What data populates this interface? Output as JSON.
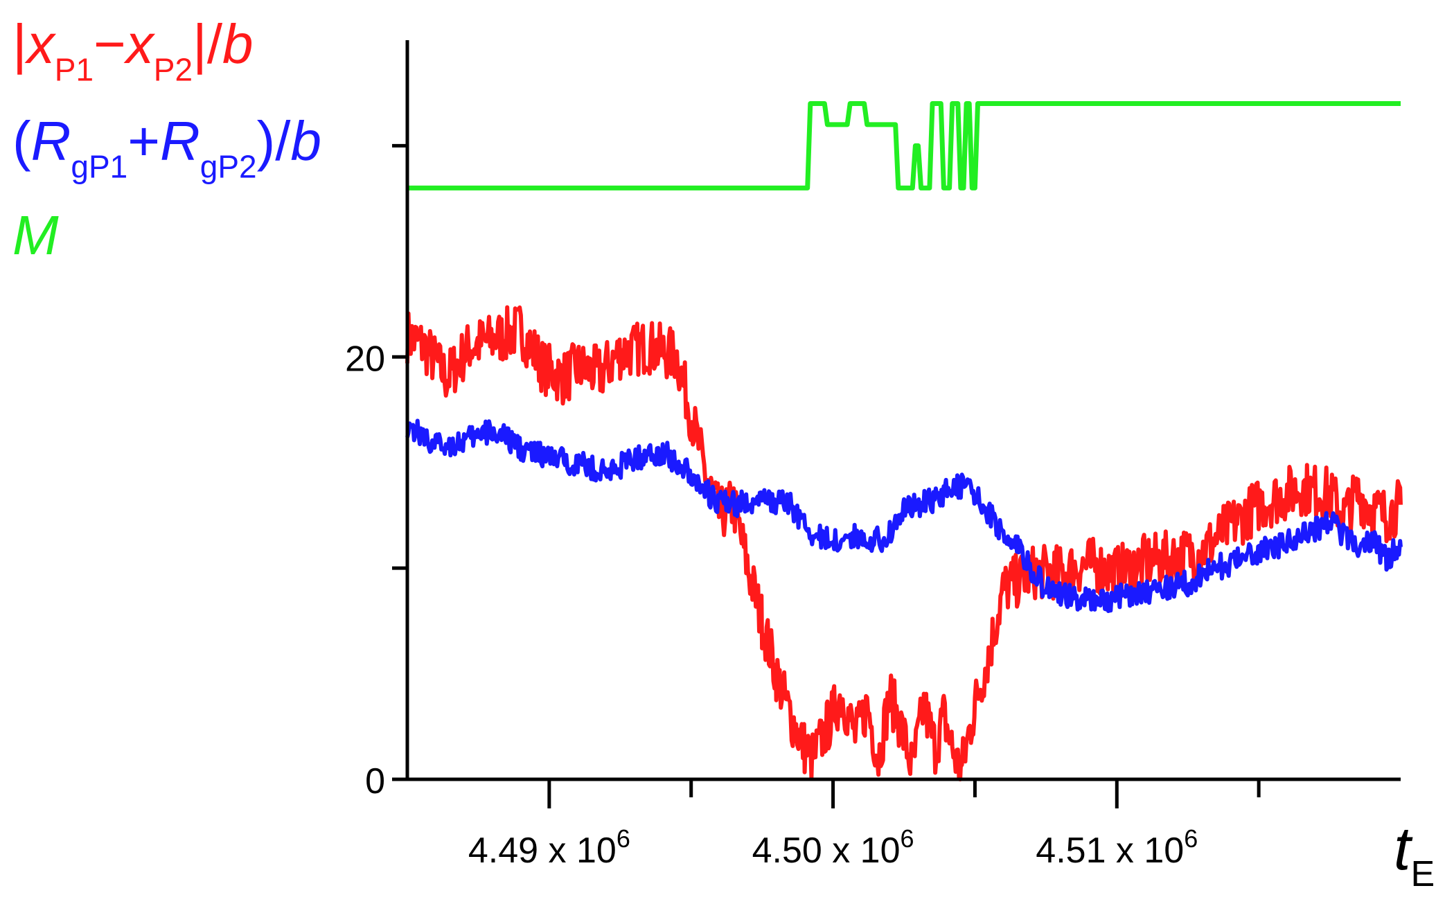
{
  "colors": {
    "series_red": "#ff1a1a",
    "series_blue": "#1a1aff",
    "series_green": "#22ee22",
    "axis": "#000000"
  },
  "legend": {
    "red": {
      "open": "|",
      "x": "x",
      "s1": "P1",
      "minus": "−",
      "s2": "P2",
      "close": "|/",
      "b": "b"
    },
    "blue": {
      "open": "(",
      "r1": "R",
      "s1": "gP1",
      "plus": "+",
      "r2": "R",
      "s2": "gP2",
      "close": ")/",
      "b": "b"
    },
    "green": {
      "m": "M"
    }
  },
  "xaxis": {
    "label_t": "t",
    "label_sub": "E"
  },
  "chart_data": {
    "type": "line",
    "x_range": [
      4485000.0,
      4520000.0
    ],
    "y_range": [
      0,
      35
    ],
    "y_ticks": [
      {
        "value": 0,
        "label": "0"
      },
      {
        "value": 20,
        "label": "20"
      }
    ],
    "y_minor_ticks": [
      10,
      30
    ],
    "x_ticks": [
      {
        "value": 4490000.0,
        "label": "4.49 x 10",
        "exp": "6"
      },
      {
        "value": 4500000.0,
        "label": "4.50 x 10",
        "exp": "6"
      },
      {
        "value": 4510000.0,
        "label": "4.51 x 10",
        "exp": "6"
      }
    ],
    "x_minor_ticks": [
      4495000.0,
      4505000.0,
      4515000.0
    ],
    "series": [
      {
        "color": "#ff1a1a",
        "x": [
          4485000.0,
          4485600.0,
          4486400.0,
          4487200.0,
          4488000.0,
          4489000.0,
          4489800.0,
          4490500.0,
          4491000.0,
          4491800.0,
          4492500.0,
          4493500.0,
          4494500.0,
          4495500.0,
          4496000.0,
          4496500.0,
          4497000.0,
          4497500.0,
          4498000.0,
          4498500.0,
          4499000.0,
          4499300.0,
          4499800.0,
          4500300.0,
          4500800.0,
          4501200.0,
          4501600.0,
          4502000.0,
          4502400.0,
          4502800.0,
          4503200.0,
          4503600.0,
          4503900.0,
          4504200.0,
          4504500.0,
          4505000.0,
          4505500.0,
          4506000.0,
          4507000.0,
          4508000.0,
          4509000.0,
          4510000.0,
          4511000.0,
          4512000.0,
          4513000.0,
          4514000.0,
          4515000.0,
          4516500.0,
          4517500.0,
          4518000.0,
          4518500.0,
          4519000.0,
          4519500.0,
          4520000.0
        ],
        "y": [
          21.0,
          20.5,
          19.0,
          20.5,
          20.8,
          21.3,
          19.5,
          19.0,
          19.5,
          19.2,
          20.2,
          20.5,
          20.0,
          14.5,
          12.5,
          13.0,
          10.0,
          7.5,
          5.0,
          3.0,
          1.5,
          1.0,
          2.5,
          4.0,
          2.0,
          3.5,
          1.0,
          4.0,
          2.5,
          0.5,
          3.5,
          1.5,
          3.0,
          1.5,
          0.3,
          3.5,
          6.0,
          9.0,
          9.8,
          9.8,
          10.2,
          9.8,
          10.3,
          10.5,
          10.8,
          12.0,
          13.0,
          13.8,
          13.5,
          12.5,
          13.5,
          12.8,
          12.5,
          13.0
        ]
      },
      {
        "color": "#1a1aff",
        "x": [
          4485000.0,
          4486000.0,
          4487000.0,
          4488000.0,
          4489000.0,
          4490000.0,
          4491000.0,
          4492000.0,
          4493000.0,
          4494000.0,
          4495000.0,
          4495800.0,
          4496500.0,
          4497500.0,
          4498500.0,
          4499300.0,
          4500000.0,
          4501000.0,
          4501800.0,
          4502500.0,
          4503500.0,
          4504300.0,
          4505000.0,
          4505800.0,
          4506500.0,
          4507500.0,
          4508500.0,
          4509500.0,
          4510500.0,
          4511500.0,
          4512500.0,
          4513500.0,
          4514500.0,
          4515500.0,
          4516500.0,
          4517500.0,
          4518500.0,
          4519000.0,
          4519500.0,
          4520000.0
        ],
        "y": [
          16.8,
          15.8,
          16.0,
          16.5,
          15.7,
          15.2,
          15.0,
          14.5,
          15.2,
          15.5,
          14.5,
          13.2,
          13.0,
          13.2,
          13.0,
          11.5,
          11.3,
          11.5,
          11.3,
          12.8,
          13.2,
          14.0,
          13.5,
          12.0,
          11.0,
          9.0,
          8.6,
          8.5,
          8.8,
          9.0,
          9.3,
          10.0,
          10.5,
          11.0,
          11.5,
          12.2,
          11.0,
          11.3,
          10.5,
          11.0
        ]
      },
      {
        "color": "#22ee22",
        "x": [
          4485000.0,
          4499100.0,
          4499200.0,
          4499700.0,
          4499800.0,
          4500500.0,
          4500600.0,
          4501100.0,
          4501200.0,
          4502200.0,
          4502300.0,
          4502800.0,
          4502900.0,
          4503000.0,
          4503100.0,
          4503400.0,
          4503500.0,
          4503800.0,
          4503900.0,
          4504100.0,
          4504200.0,
          4504400.0,
          4504500.0,
          4504600.0,
          4504700.0,
          4504800.0,
          4504900.0,
          4505000.0,
          4505100.0,
          4520000.0
        ],
        "y": [
          28,
          28,
          32,
          32,
          31,
          31,
          32,
          32,
          31,
          31,
          28,
          28,
          30,
          30,
          28,
          28,
          32,
          32,
          28,
          28,
          32,
          32,
          28,
          28,
          32,
          32,
          28,
          28,
          32,
          32
        ]
      }
    ]
  }
}
